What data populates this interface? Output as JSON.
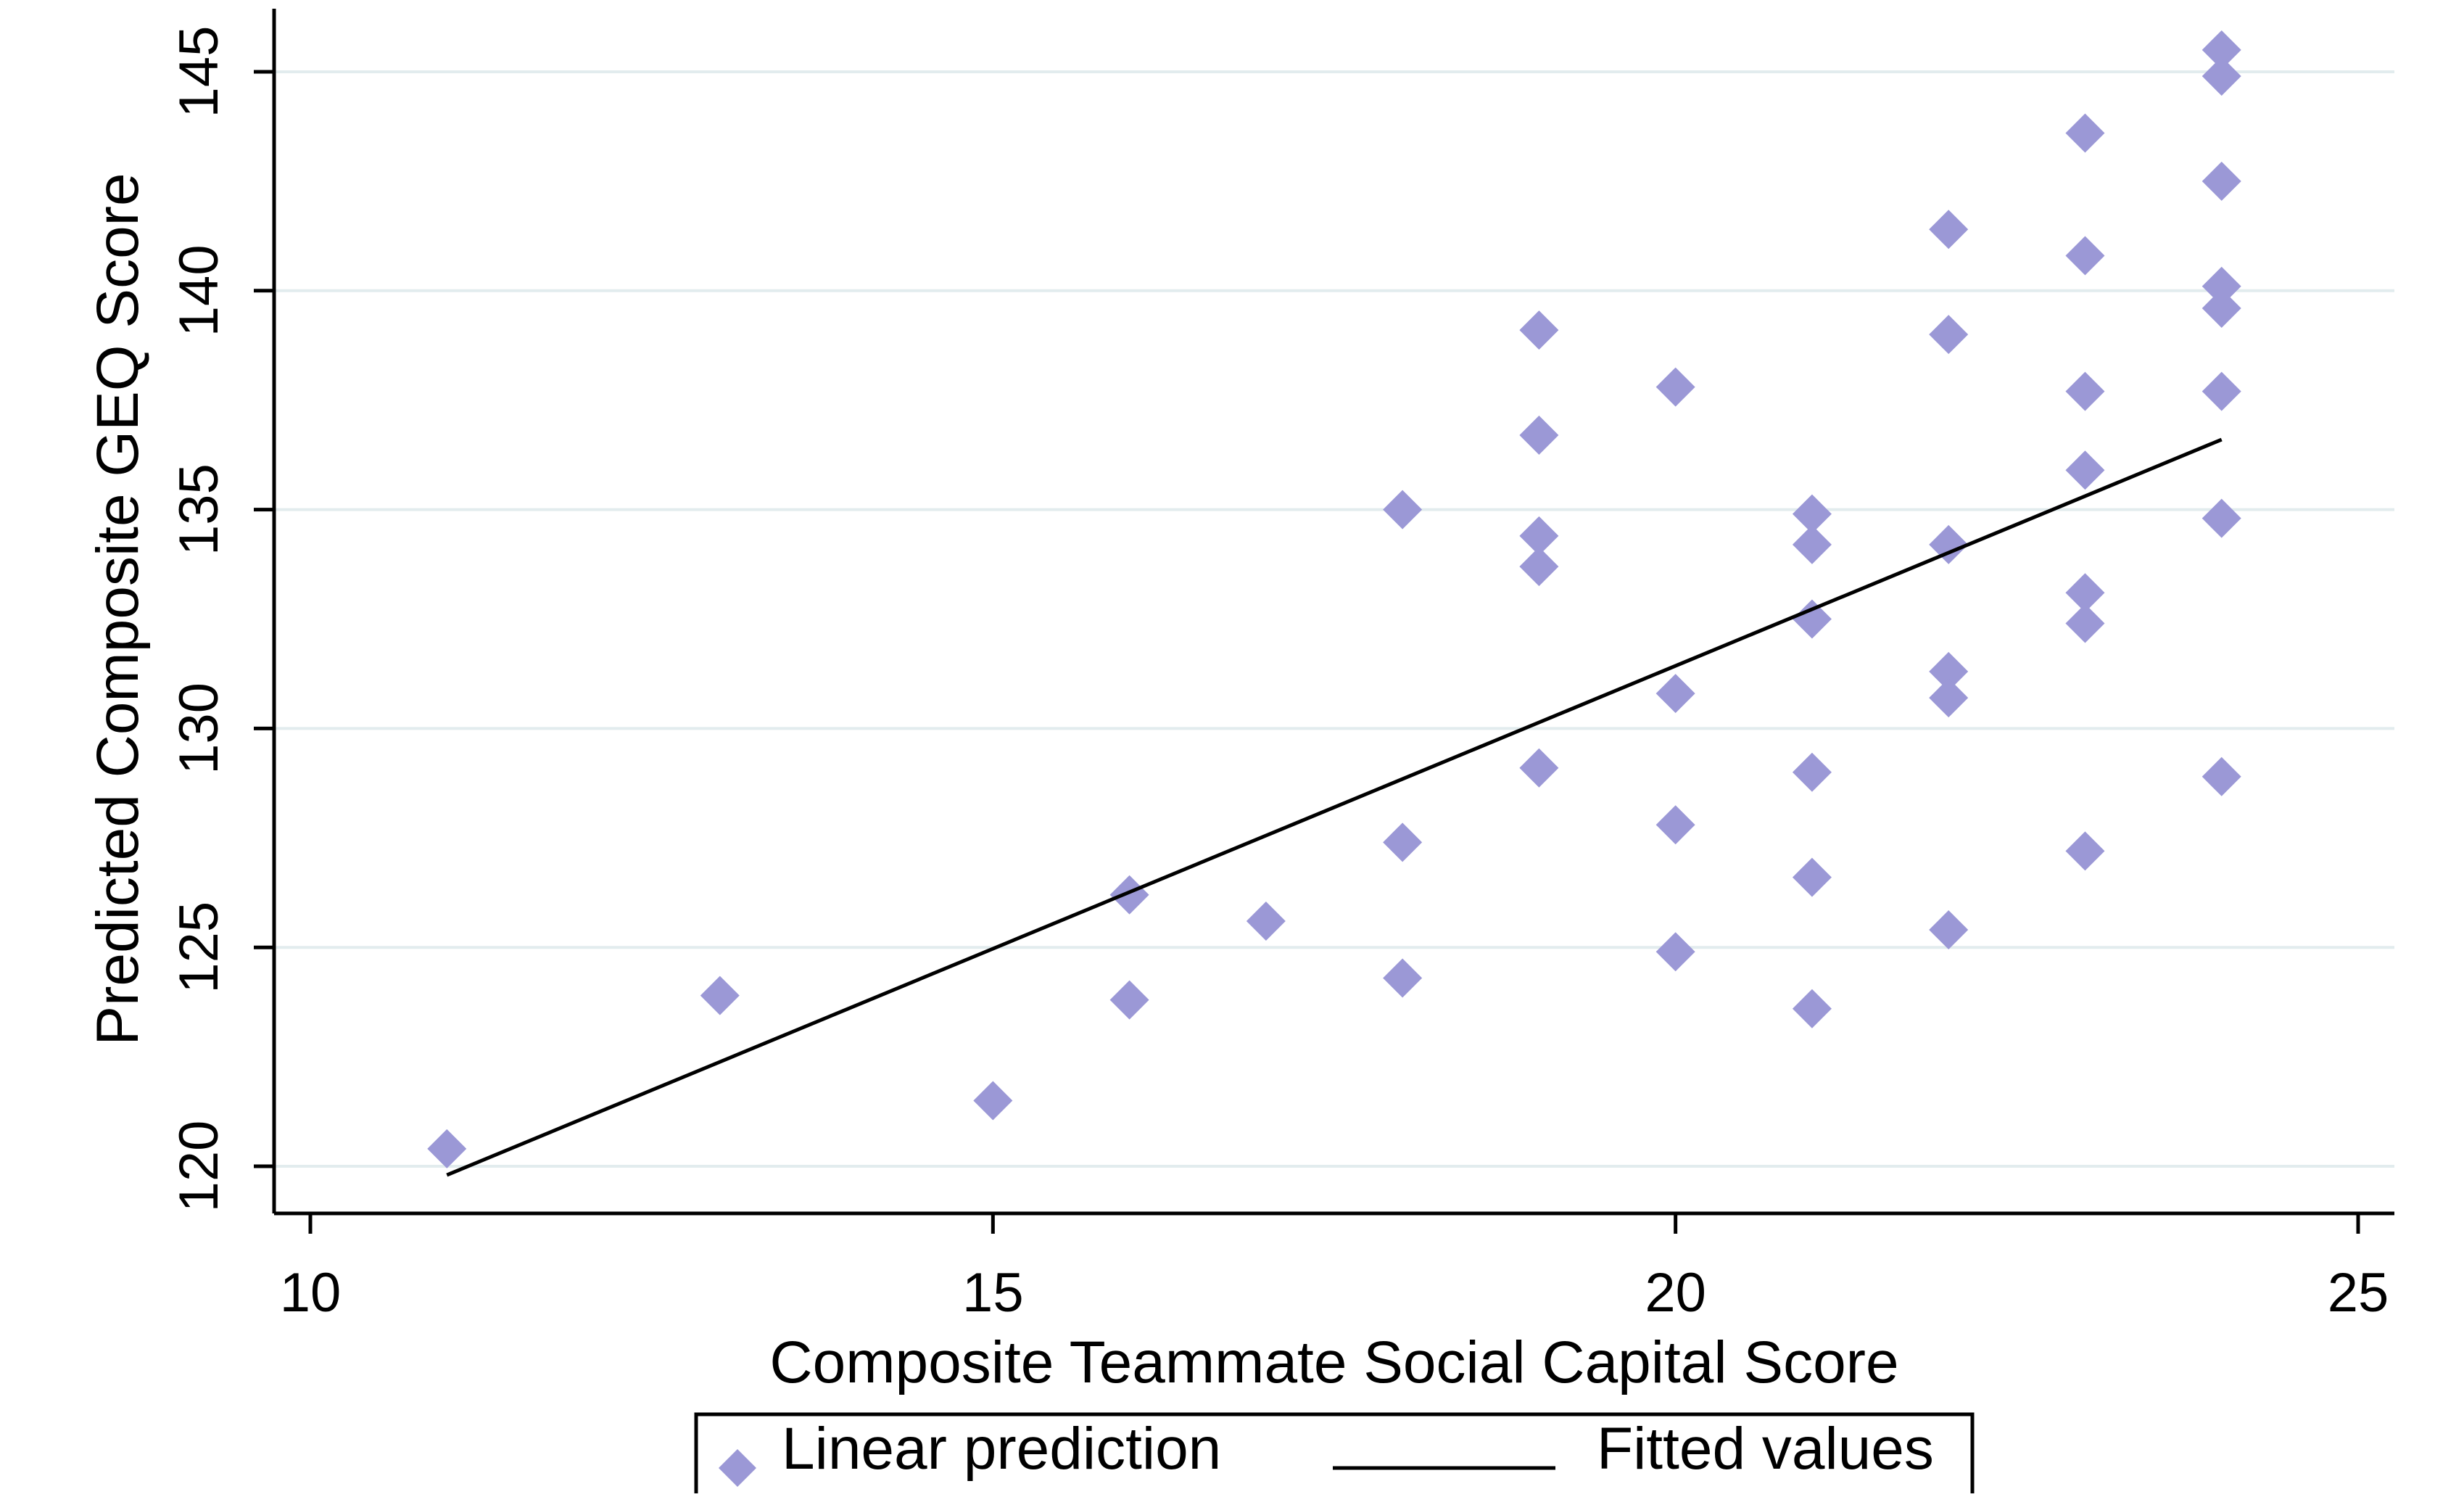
{
  "chart_data": {
    "type": "scatter",
    "title": "",
    "xlabel": "Composite Teammate Social Capital Score",
    "ylabel": "Predicted Composite GEQ Score",
    "xlim": [
      10,
      25
    ],
    "ylim": [
      120,
      145
    ],
    "xticks": [
      10,
      15,
      20,
      25
    ],
    "yticks": [
      120,
      125,
      130,
      135,
      140,
      145
    ],
    "grid": "horizontal",
    "legend_position": "bottom",
    "series": [
      {
        "name": "Linear prediction",
        "marker": "diamond",
        "color": "#9b98d6",
        "points": [
          [
            11,
            120.4
          ],
          [
            13,
            123.9
          ],
          [
            15,
            121.5
          ],
          [
            16,
            126.2
          ],
          [
            16,
            123.8
          ],
          [
            17,
            125.6
          ],
          [
            18,
            135.0
          ],
          [
            18,
            127.4
          ],
          [
            18,
            124.3
          ],
          [
            19,
            139.1
          ],
          [
            19,
            136.7
          ],
          [
            19,
            134.4
          ],
          [
            19,
            133.7
          ],
          [
            19,
            129.1
          ],
          [
            20,
            137.8
          ],
          [
            20,
            130.8
          ],
          [
            20,
            127.8
          ],
          [
            20,
            124.9
          ],
          [
            21,
            134.9
          ],
          [
            21,
            134.2
          ],
          [
            21,
            132.5
          ],
          [
            21,
            129.0
          ],
          [
            21,
            126.6
          ],
          [
            21,
            123.6
          ],
          [
            22,
            141.4
          ],
          [
            22,
            139.0
          ],
          [
            22,
            134.2
          ],
          [
            22,
            131.3
          ],
          [
            22,
            130.7
          ],
          [
            22,
            125.4
          ],
          [
            23,
            143.6
          ],
          [
            23,
            140.8
          ],
          [
            23,
            137.7
          ],
          [
            23,
            135.9
          ],
          [
            23,
            133.1
          ],
          [
            23,
            132.4
          ],
          [
            23,
            127.2
          ],
          [
            24,
            145.5
          ],
          [
            24,
            144.9
          ],
          [
            24,
            142.5
          ],
          [
            24,
            140.1
          ],
          [
            24,
            139.6
          ],
          [
            24,
            137.7
          ],
          [
            24,
            134.8
          ],
          [
            24,
            128.9
          ]
        ]
      },
      {
        "name": "Fitted values",
        "type": "line",
        "color": "#000000",
        "points": [
          [
            11,
            119.8
          ],
          [
            24,
            136.6
          ]
        ]
      }
    ]
  }
}
